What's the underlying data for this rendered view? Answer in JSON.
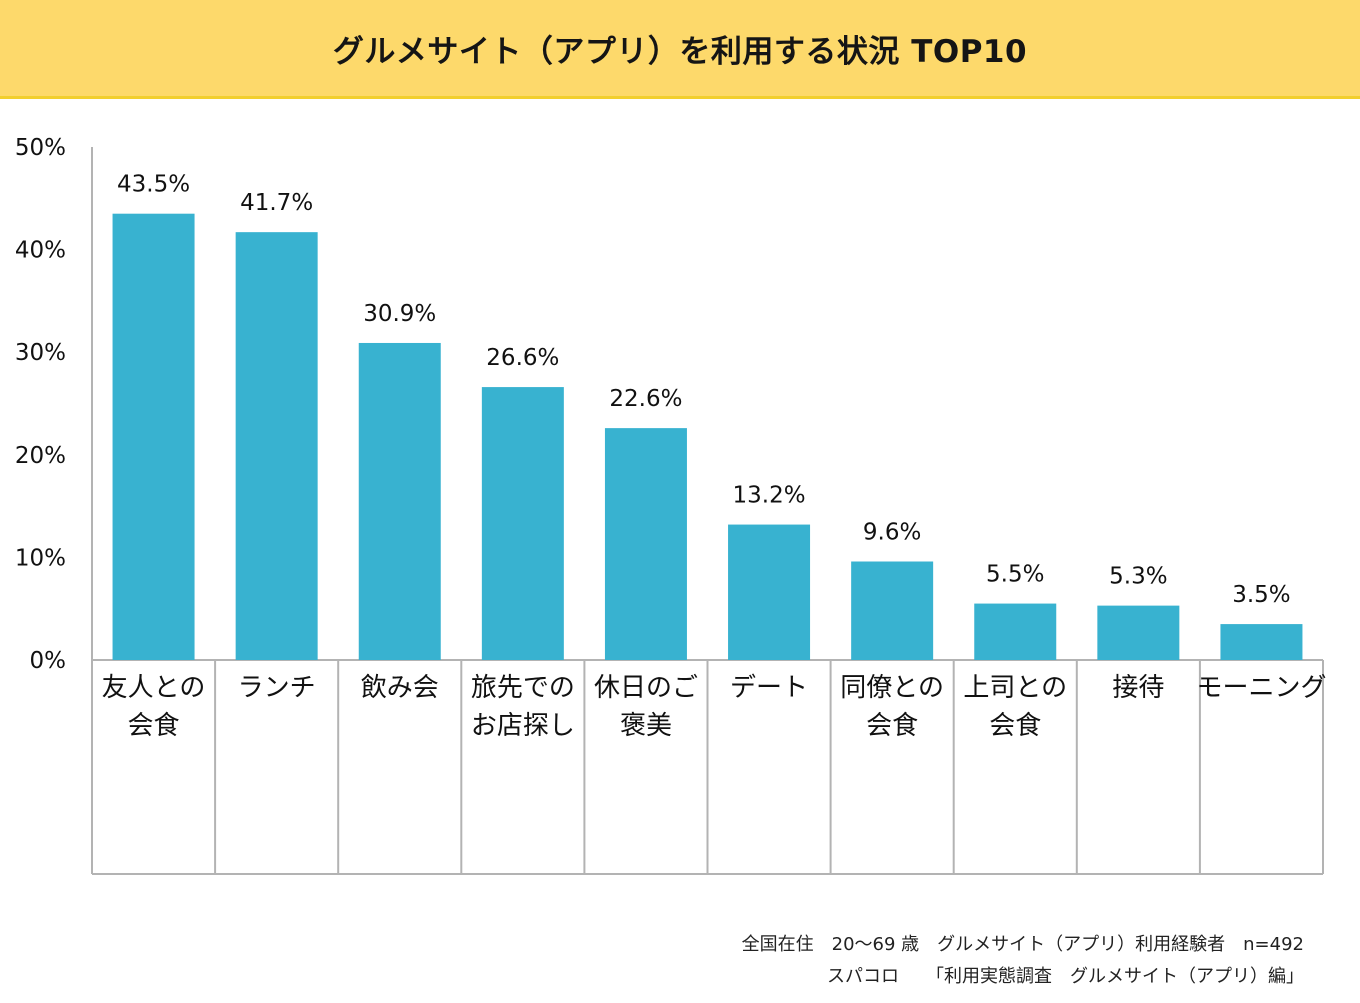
{
  "header": {
    "background": "#fdd96b",
    "border_color": "#f2cf2e"
  },
  "chart_data": {
    "type": "bar",
    "title": "グルメサイト（アプリ）を利用する状況 TOP10",
    "categories": [
      [
        "友人との",
        "会食"
      ],
      [
        "ランチ"
      ],
      [
        "飲み会"
      ],
      [
        "旅先での",
        "お店探し"
      ],
      [
        "休日のご",
        "褒美"
      ],
      [
        "デート"
      ],
      [
        "同僚との",
        "会食"
      ],
      [
        "上司との",
        "会食"
      ],
      [
        "接待"
      ],
      [
        "モーニング"
      ]
    ],
    "values": [
      43.5,
      41.7,
      30.9,
      26.6,
      22.6,
      13.2,
      9.6,
      5.5,
      5.3,
      3.5
    ],
    "data_labels": [
      "43.5%",
      "41.7%",
      "30.9%",
      "26.6%",
      "22.6%",
      "13.2%",
      "9.6%",
      "5.5%",
      "5.3%",
      "3.5%"
    ],
    "ylim": [
      0,
      50
    ],
    "yticks": [
      0,
      10,
      20,
      30,
      40,
      50
    ],
    "ytick_labels": [
      "0%",
      "10%",
      "20%",
      "30%",
      "40%",
      "50%"
    ],
    "grid": false,
    "legend": "none",
    "bar_color": "#38b2d0",
    "axis_color": "#b3b3b3"
  },
  "footnote": {
    "line1": "全国在住　20～69 歳　グルメサイト（アプリ）利用経験者　n=492",
    "line2": "スパコロ　　「利用実態調査　グルメサイト（アプリ）編」"
  }
}
